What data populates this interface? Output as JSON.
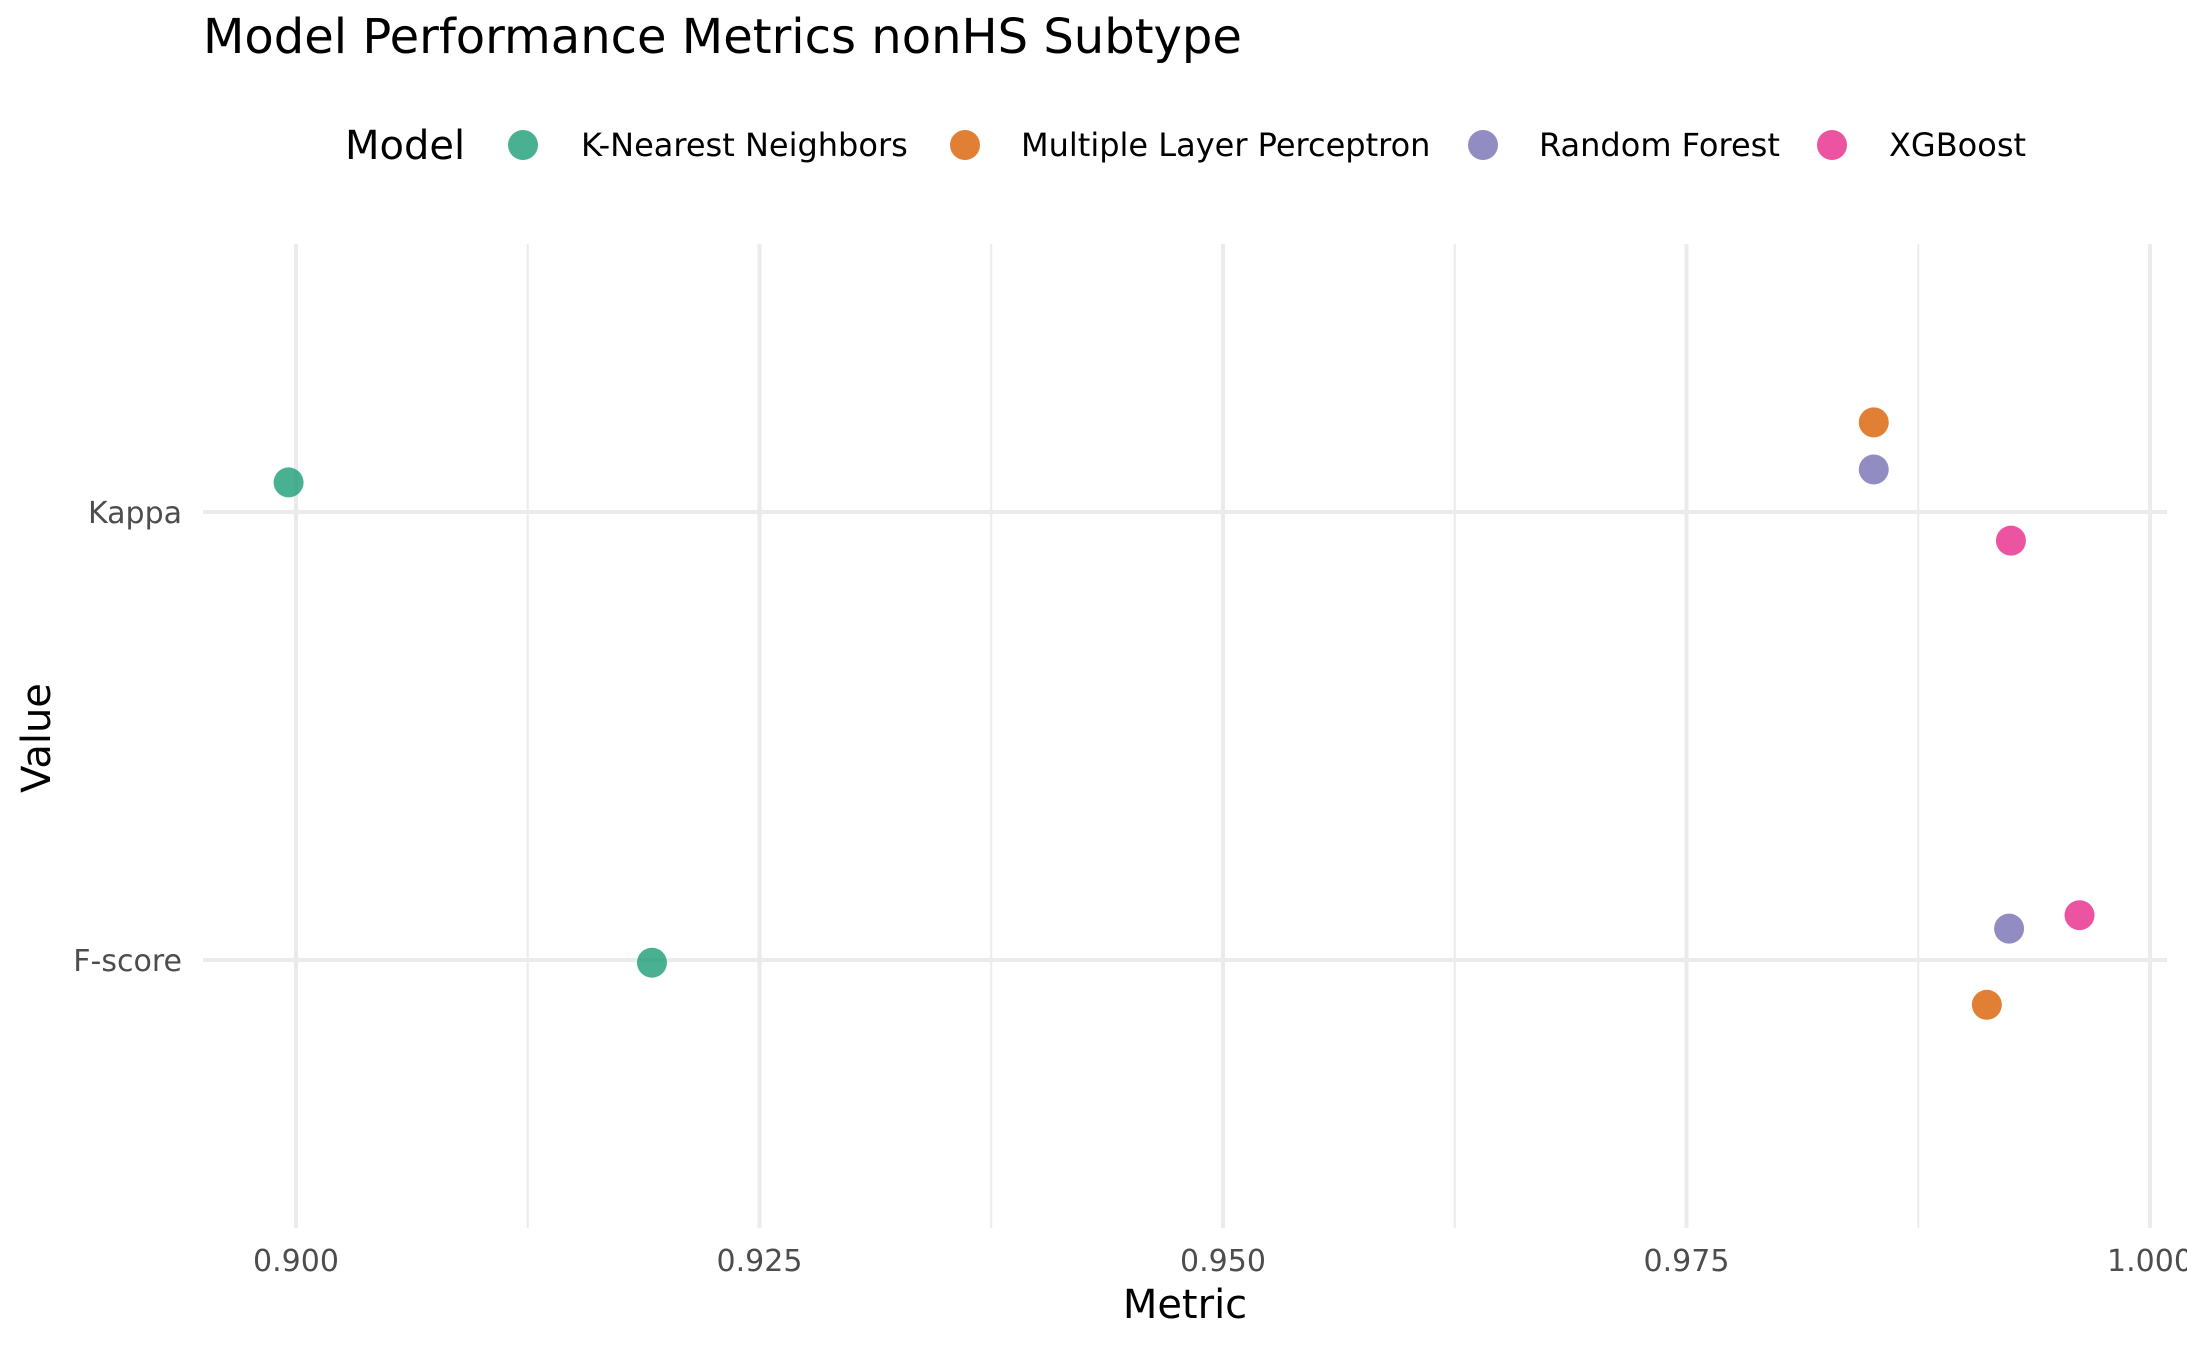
{
  "chart_data": {
    "type": "scatter",
    "title": "Model Performance Metrics nonHS Subtype",
    "xlabel": "Metric",
    "ylabel": "Value",
    "legend_title": "Model",
    "legend_position": "top",
    "grid": true,
    "xlim": [
      0.895,
      1.0
    ],
    "x_ticks": [
      0.9,
      0.925,
      0.95,
      0.975,
      1.0
    ],
    "x_tick_labels": [
      "0.900",
      "0.925",
      "0.950",
      "0.975",
      "1.000"
    ],
    "categories": [
      "Kappa",
      "F-score"
    ],
    "series": [
      {
        "name": "K-Nearest Neighbors",
        "color": "#1b9e77",
        "points": [
          {
            "category": "Kappa",
            "x": 0.8996,
            "jitter": 0.066
          },
          {
            "category": "F-score",
            "x": 0.9192,
            "jitter": -0.006
          }
        ]
      },
      {
        "name": "Multiple Layer Perceptron",
        "color": "#d95f02",
        "points": [
          {
            "category": "Kappa",
            "x": 0.9851,
            "jitter": 0.2
          },
          {
            "category": "F-score",
            "x": 0.9912,
            "jitter": -0.1
          }
        ]
      },
      {
        "name": "Random Forest",
        "color": "#7570b3",
        "points": [
          {
            "category": "Kappa",
            "x": 0.9851,
            "jitter": 0.095
          },
          {
            "category": "F-score",
            "x": 0.9924,
            "jitter": 0.07
          }
        ]
      },
      {
        "name": "XGBoost",
        "color": "#e7298a",
        "points": [
          {
            "category": "Kappa",
            "x": 0.9925,
            "jitter": -0.064
          },
          {
            "category": "F-score",
            "x": 0.9962,
            "jitter": 0.1
          }
        ]
      }
    ]
  }
}
